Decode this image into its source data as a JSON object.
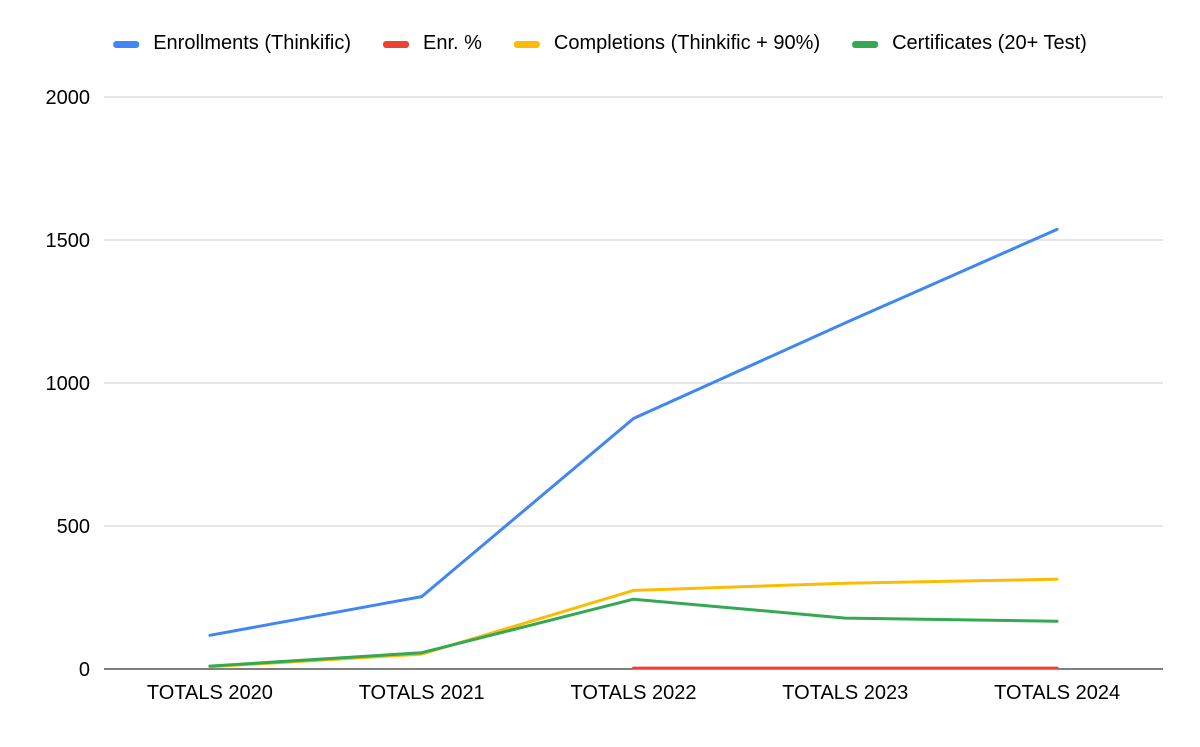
{
  "chart_data": {
    "type": "line",
    "title": "",
    "xlabel": "",
    "ylabel": "",
    "categories": [
      "TOTALS 2020",
      "TOTALS 2021",
      "TOTALS 2022",
      "TOTALS 2023",
      "TOTALS 2024"
    ],
    "ylim": [
      0,
      2000
    ],
    "yticks": [
      "0",
      "500",
      "1000",
      "1500",
      "2000"
    ],
    "grid": true,
    "legend_position": "top",
    "series": [
      {
        "name": "Enrollments (Thinkific)",
        "color": "#4285F4",
        "values": [
          118,
          253,
          876,
          1210,
          1537
        ]
      },
      {
        "name": "Enr. %",
        "color": "#EA4335",
        "values": [
          null,
          null,
          3,
          3,
          3
        ]
      },
      {
        "name": "Completions (Thinkific + 90%)",
        "color": "#FBBC04",
        "values": [
          8,
          52,
          275,
          300,
          314
        ]
      },
      {
        "name": "Certificates (20+ Test)",
        "color": "#34A853",
        "values": [
          10,
          57,
          244,
          178,
          167
        ]
      }
    ]
  }
}
